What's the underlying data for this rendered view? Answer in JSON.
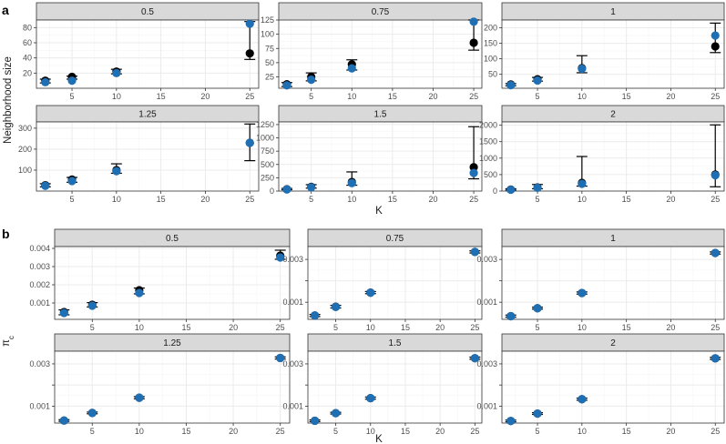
{
  "colors": {
    "point": "#1f6fb4",
    "point_black": "#000000",
    "errorbar": "#000000",
    "strip_fill": "#d9d9d9",
    "strip_border": "#333333",
    "panel_border": "#333333",
    "grid_major": "#ebebeb",
    "grid_minor": "#f5f5f5"
  },
  "chart_data": [
    {
      "panel": "a",
      "type": "scatter",
      "xlabel": "K",
      "ylabel": "Neighborhood size",
      "x_ticks": [
        "5",
        "10",
        "15",
        "20",
        "25"
      ],
      "x_tick_values": [
        5,
        10,
        15,
        20,
        25
      ],
      "xlim": [
        1,
        26
      ],
      "facets": [
        {
          "label": "0.5",
          "ylim": [
            0,
            90
          ],
          "y_ticks": [
            20,
            40,
            60,
            80
          ],
          "y_tick_labels": [
            "20",
            "40",
            "60",
            "80"
          ],
          "points": [
            {
              "x": 2,
              "y": 8,
              "lo": 7,
              "hi": 12,
              "mean": 10
            },
            {
              "x": 5,
              "y": 10,
              "lo": 12,
              "hi": 16,
              "mean": 15
            },
            {
              "x": 10,
              "y": 20,
              "lo": 19,
              "hi": 25,
              "mean": 22
            },
            {
              "x": 25,
              "y": 85,
              "lo": 38,
              "hi": 88,
              "mean": 46
            }
          ]
        },
        {
          "label": "0.75",
          "ylim": [
            5,
            125
          ],
          "y_ticks": [
            25,
            50,
            75,
            100,
            125
          ],
          "y_tick_labels": [
            "25",
            "50",
            "75",
            "100",
            "125"
          ],
          "points": [
            {
              "x": 2,
              "y": 10,
              "lo": 8,
              "hi": 15,
              "mean": 12
            },
            {
              "x": 5,
              "y": 20,
              "lo": 18,
              "hi": 32,
              "mean": 25
            },
            {
              "x": 10,
              "y": 40,
              "lo": 37,
              "hi": 55,
              "mean": 47
            },
            {
              "x": 25,
              "y": 122,
              "lo": 72,
              "hi": 125,
              "mean": 85
            }
          ]
        },
        {
          "label": "1",
          "ylim": [
            5,
            225
          ],
          "y_ticks": [
            50,
            100,
            150,
            200
          ],
          "y_tick_labels": [
            "50",
            "100",
            "150",
            "200"
          ],
          "points": [
            {
              "x": 2,
              "y": 15,
              "lo": 13,
              "hi": 20,
              "mean": 17
            },
            {
              "x": 5,
              "y": 30,
              "lo": 28,
              "hi": 40,
              "mean": 34
            },
            {
              "x": 10,
              "y": 68,
              "lo": 55,
              "hi": 110,
              "mean": 70
            },
            {
              "x": 25,
              "y": 175,
              "lo": 120,
              "hi": 215,
              "mean": 140
            }
          ]
        },
        {
          "label": "1.25",
          "ylim": [
            0,
            330
          ],
          "y_ticks": [
            100,
            200,
            300
          ],
          "y_tick_labels": [
            "100",
            "200",
            "300"
          ],
          "points": [
            {
              "x": 2,
              "y": 25,
              "lo": 20,
              "hi": 35,
              "mean": 28
            },
            {
              "x": 5,
              "y": 48,
              "lo": 42,
              "hi": 65,
              "mean": 55
            },
            {
              "x": 10,
              "y": 95,
              "lo": 85,
              "hi": 130,
              "mean": 100
            },
            {
              "x": 25,
              "y": 230,
              "lo": 145,
              "hi": 320,
              "mean": 230
            }
          ]
        },
        {
          "label": "1.5",
          "ylim": [
            0,
            1300
          ],
          "y_ticks": [
            0,
            250,
            500,
            750,
            1000,
            1250
          ],
          "y_tick_labels": [
            "0",
            "250",
            "500",
            "750",
            "1000",
            "1250"
          ],
          "points": [
            {
              "x": 2,
              "y": 30,
              "lo": 25,
              "hi": 50,
              "mean": 35
            },
            {
              "x": 5,
              "y": 70,
              "lo": 55,
              "hi": 120,
              "mean": 80
            },
            {
              "x": 10,
              "y": 150,
              "lo": 110,
              "hi": 360,
              "mean": 170
            },
            {
              "x": 25,
              "y": 340,
              "lo": 230,
              "hi": 1210,
              "mean": 450
            }
          ]
        },
        {
          "label": "2",
          "ylim": [
            0,
            2100
          ],
          "y_ticks": [
            0,
            500,
            1000,
            1500,
            2000
          ],
          "y_tick_labels": [
            "0",
            "500",
            "1000",
            "1500",
            "2000"
          ],
          "points": [
            {
              "x": 2,
              "y": 40,
              "lo": 30,
              "hi": 70,
              "mean": 45
            },
            {
              "x": 5,
              "y": 100,
              "lo": 70,
              "hi": 200,
              "mean": 110
            },
            {
              "x": 10,
              "y": 220,
              "lo": 150,
              "hi": 1050,
              "mean": 250
            },
            {
              "x": 25,
              "y": 480,
              "lo": 130,
              "hi": 2010,
              "mean": 500
            }
          ]
        }
      ]
    },
    {
      "panel": "b",
      "type": "scatter",
      "xlabel": "K",
      "ylabel": "πc",
      "x_ticks": [
        "5",
        "10",
        "15",
        "20",
        "25"
      ],
      "x_tick_values": [
        5,
        10,
        15,
        20,
        25
      ],
      "xlim": [
        1,
        26
      ],
      "facets": [
        {
          "label": "0.5",
          "ylim": [
            0.0001,
            0.0041
          ],
          "y_ticks": [
            0.001,
            0.002,
            0.003,
            0.004
          ],
          "y_tick_labels": [
            "0.001",
            "0.002",
            "0.003",
            "0.004"
          ],
          "points": [
            {
              "x": 2,
              "y": 0.00045,
              "lo": 0.00035,
              "hi": 0.00062,
              "mean": 0.0005
            },
            {
              "x": 5,
              "y": 0.00085,
              "lo": 0.00078,
              "hi": 0.00102,
              "mean": 0.0009
            },
            {
              "x": 10,
              "y": 0.00155,
              "lo": 0.0015,
              "hi": 0.00182,
              "mean": 0.0017
            },
            {
              "x": 25,
              "y": 0.0035,
              "lo": 0.0034,
              "hi": 0.0039,
              "mean": 0.0036
            }
          ]
        },
        {
          "label": "0.75",
          "ylim": [
            0.0002,
            0.0036
          ],
          "y_ticks": [
            0.001,
            0.002,
            0.003
          ],
          "y_tick_labels": [
            "0.001",
            "",
            "0.003"
          ],
          "points": [
            {
              "x": 2,
              "y": 0.00038,
              "lo": 0.00033,
              "hi": 0.00043,
              "mean": 0.00038
            },
            {
              "x": 5,
              "y": 0.00078,
              "lo": 0.00073,
              "hi": 0.00085,
              "mean": 0.00079
            },
            {
              "x": 10,
              "y": 0.00145,
              "lo": 0.0014,
              "hi": 0.0015,
              "mean": 0.00145
            },
            {
              "x": 25,
              "y": 0.00335,
              "lo": 0.0033,
              "hi": 0.0034,
              "mean": 0.00335
            }
          ]
        },
        {
          "label": "1",
          "ylim": [
            0.0002,
            0.0036
          ],
          "y_ticks": [
            0.001,
            0.002,
            0.003
          ],
          "y_tick_labels": [
            "0.001",
            "",
            "0.003"
          ],
          "points": [
            {
              "x": 2,
              "y": 0.00035,
              "lo": 0.0003,
              "hi": 0.0004,
              "mean": 0.00035
            },
            {
              "x": 5,
              "y": 0.00072,
              "lo": 0.00068,
              "hi": 0.00077,
              "mean": 0.00072
            },
            {
              "x": 10,
              "y": 0.00143,
              "lo": 0.00138,
              "hi": 0.00148,
              "mean": 0.00143
            },
            {
              "x": 25,
              "y": 0.0033,
              "lo": 0.00325,
              "hi": 0.00335,
              "mean": 0.0033
            }
          ]
        },
        {
          "label": "1.25",
          "ylim": [
            0.0002,
            0.0036
          ],
          "y_ticks": [
            0.001,
            0.002,
            0.003
          ],
          "y_tick_labels": [
            "0.001",
            "",
            "0.003"
          ],
          "points": [
            {
              "x": 2,
              "y": 0.00032,
              "lo": 0.00028,
              "hi": 0.00036,
              "mean": 0.00032
            },
            {
              "x": 5,
              "y": 0.00068,
              "lo": 0.00064,
              "hi": 0.00072,
              "mean": 0.00068
            },
            {
              "x": 10,
              "y": 0.0014,
              "lo": 0.00135,
              "hi": 0.00145,
              "mean": 0.0014
            },
            {
              "x": 25,
              "y": 0.00328,
              "lo": 0.00323,
              "hi": 0.00333,
              "mean": 0.00328
            }
          ]
        },
        {
          "label": "1.5",
          "ylim": [
            0.0002,
            0.0036
          ],
          "y_ticks": [
            0.001,
            0.002,
            0.003
          ],
          "y_tick_labels": [
            "0.001",
            "",
            "0.003"
          ],
          "points": [
            {
              "x": 2,
              "y": 0.00031,
              "lo": 0.00027,
              "hi": 0.00035,
              "mean": 0.00031
            },
            {
              "x": 5,
              "y": 0.00067,
              "lo": 0.00063,
              "hi": 0.00071,
              "mean": 0.00067
            },
            {
              "x": 10,
              "y": 0.00138,
              "lo": 0.00133,
              "hi": 0.00143,
              "mean": 0.00138
            },
            {
              "x": 25,
              "y": 0.00327,
              "lo": 0.00322,
              "hi": 0.00332,
              "mean": 0.00327
            }
          ]
        },
        {
          "label": "2",
          "ylim": [
            0.0002,
            0.0036
          ],
          "y_ticks": [
            0.001,
            0.002,
            0.003
          ],
          "y_tick_labels": [
            "0.001",
            "",
            "0.003"
          ],
          "points": [
            {
              "x": 2,
              "y": 0.0003,
              "lo": 0.00026,
              "hi": 0.00034,
              "mean": 0.0003
            },
            {
              "x": 5,
              "y": 0.00065,
              "lo": 0.00061,
              "hi": 0.00069,
              "mean": 0.00065
            },
            {
              "x": 10,
              "y": 0.00133,
              "lo": 0.00128,
              "hi": 0.00138,
              "mean": 0.00133
            },
            {
              "x": 25,
              "y": 0.00326,
              "lo": 0.00321,
              "hi": 0.00331,
              "mean": 0.00326
            }
          ]
        }
      ]
    }
  ]
}
